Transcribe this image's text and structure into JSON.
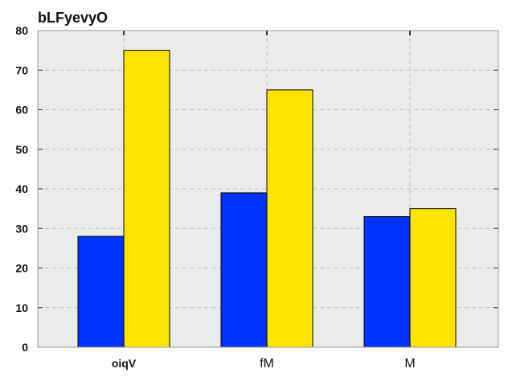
{
  "chart_data": {
    "type": "bar",
    "title": "bLFyevyO",
    "categories": [
      "oiqV",
      "fM",
      "M"
    ],
    "category_label_weights": [
      "bold",
      "normal",
      "normal"
    ],
    "series": [
      {
        "values": [
          28,
          39,
          33
        ],
        "color": "#0033ff"
      },
      {
        "values": [
          75,
          65,
          35
        ],
        "color": "#ffe400"
      }
    ],
    "ylim": [
      0,
      80
    ],
    "yticks": [
      0,
      10,
      20,
      30,
      40,
      50,
      60,
      70,
      80
    ],
    "xlabel": "",
    "ylabel": "",
    "grid": true,
    "plot_background": "#ebebeb",
    "grid_color": "#bdbdbd"
  }
}
